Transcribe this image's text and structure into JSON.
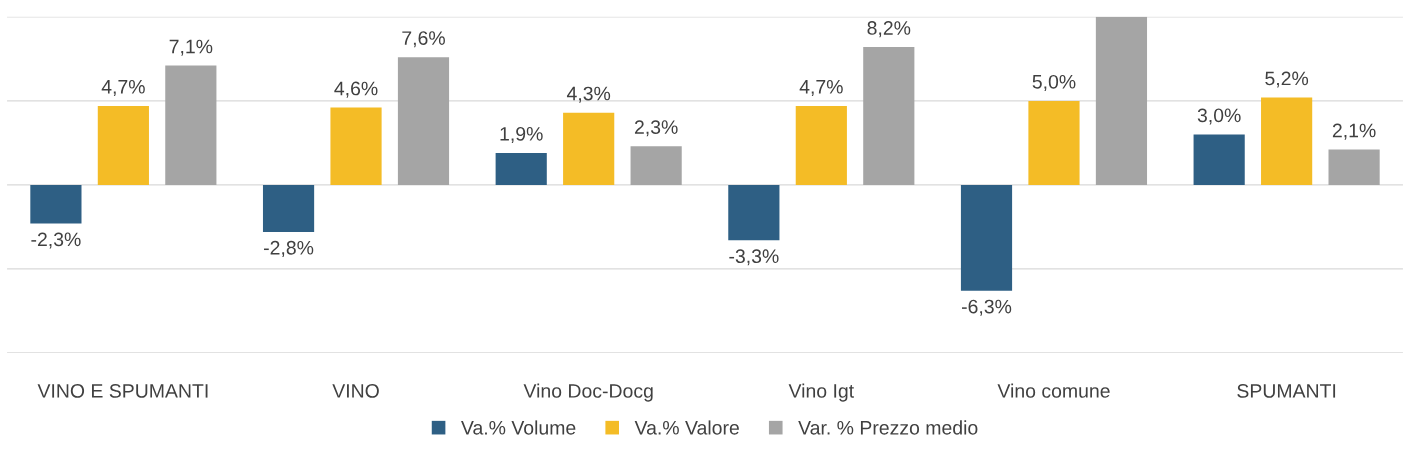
{
  "chart_data": {
    "type": "bar",
    "categories": [
      "VINO E SPUMANTI",
      "VINO",
      "Vino Doc-Docg",
      "Vino Igt",
      "Vino comune",
      "SPUMANTI"
    ],
    "series": [
      {
        "name": "Va.% Volume",
        "color": "#2e5f84",
        "values": [
          -2.3,
          -2.8,
          1.9,
          -3.3,
          -6.3,
          3.0
        ],
        "value_labels": [
          "-2,3%",
          "-2,8%",
          "1,9%",
          "-3,3%",
          "-6,3%",
          "3,0%"
        ]
      },
      {
        "name": "Va.% Valore",
        "color": "#f4bc26",
        "values": [
          4.7,
          4.6,
          4.3,
          4.7,
          5.0,
          5.2
        ],
        "value_labels": [
          "4,7%",
          "4,6%",
          "4,3%",
          "4,7%",
          "5,0%",
          "5,2%"
        ]
      },
      {
        "name": "Var. % Prezzo medio",
        "color": "#a5a5a5",
        "values": [
          7.1,
          7.6,
          2.3,
          8.2,
          10,
          2.1
        ],
        "value_labels": [
          "7,1%",
          "7,6%",
          "2,3%",
          "8,2%",
          null,
          "2,1%"
        ]
      }
    ],
    "ylim": [
      -10,
      10
    ],
    "yticks": [
      {
        "value": -10,
        "label": null
      },
      {
        "value": -5,
        "label": null
      },
      {
        "value": 0,
        "label": null
      },
      {
        "value": 5,
        "label": null
      },
      {
        "value": 10,
        "label": null
      }
    ],
    "grid": "y",
    "legend": "bottom",
    "tick_labels": "x"
  }
}
